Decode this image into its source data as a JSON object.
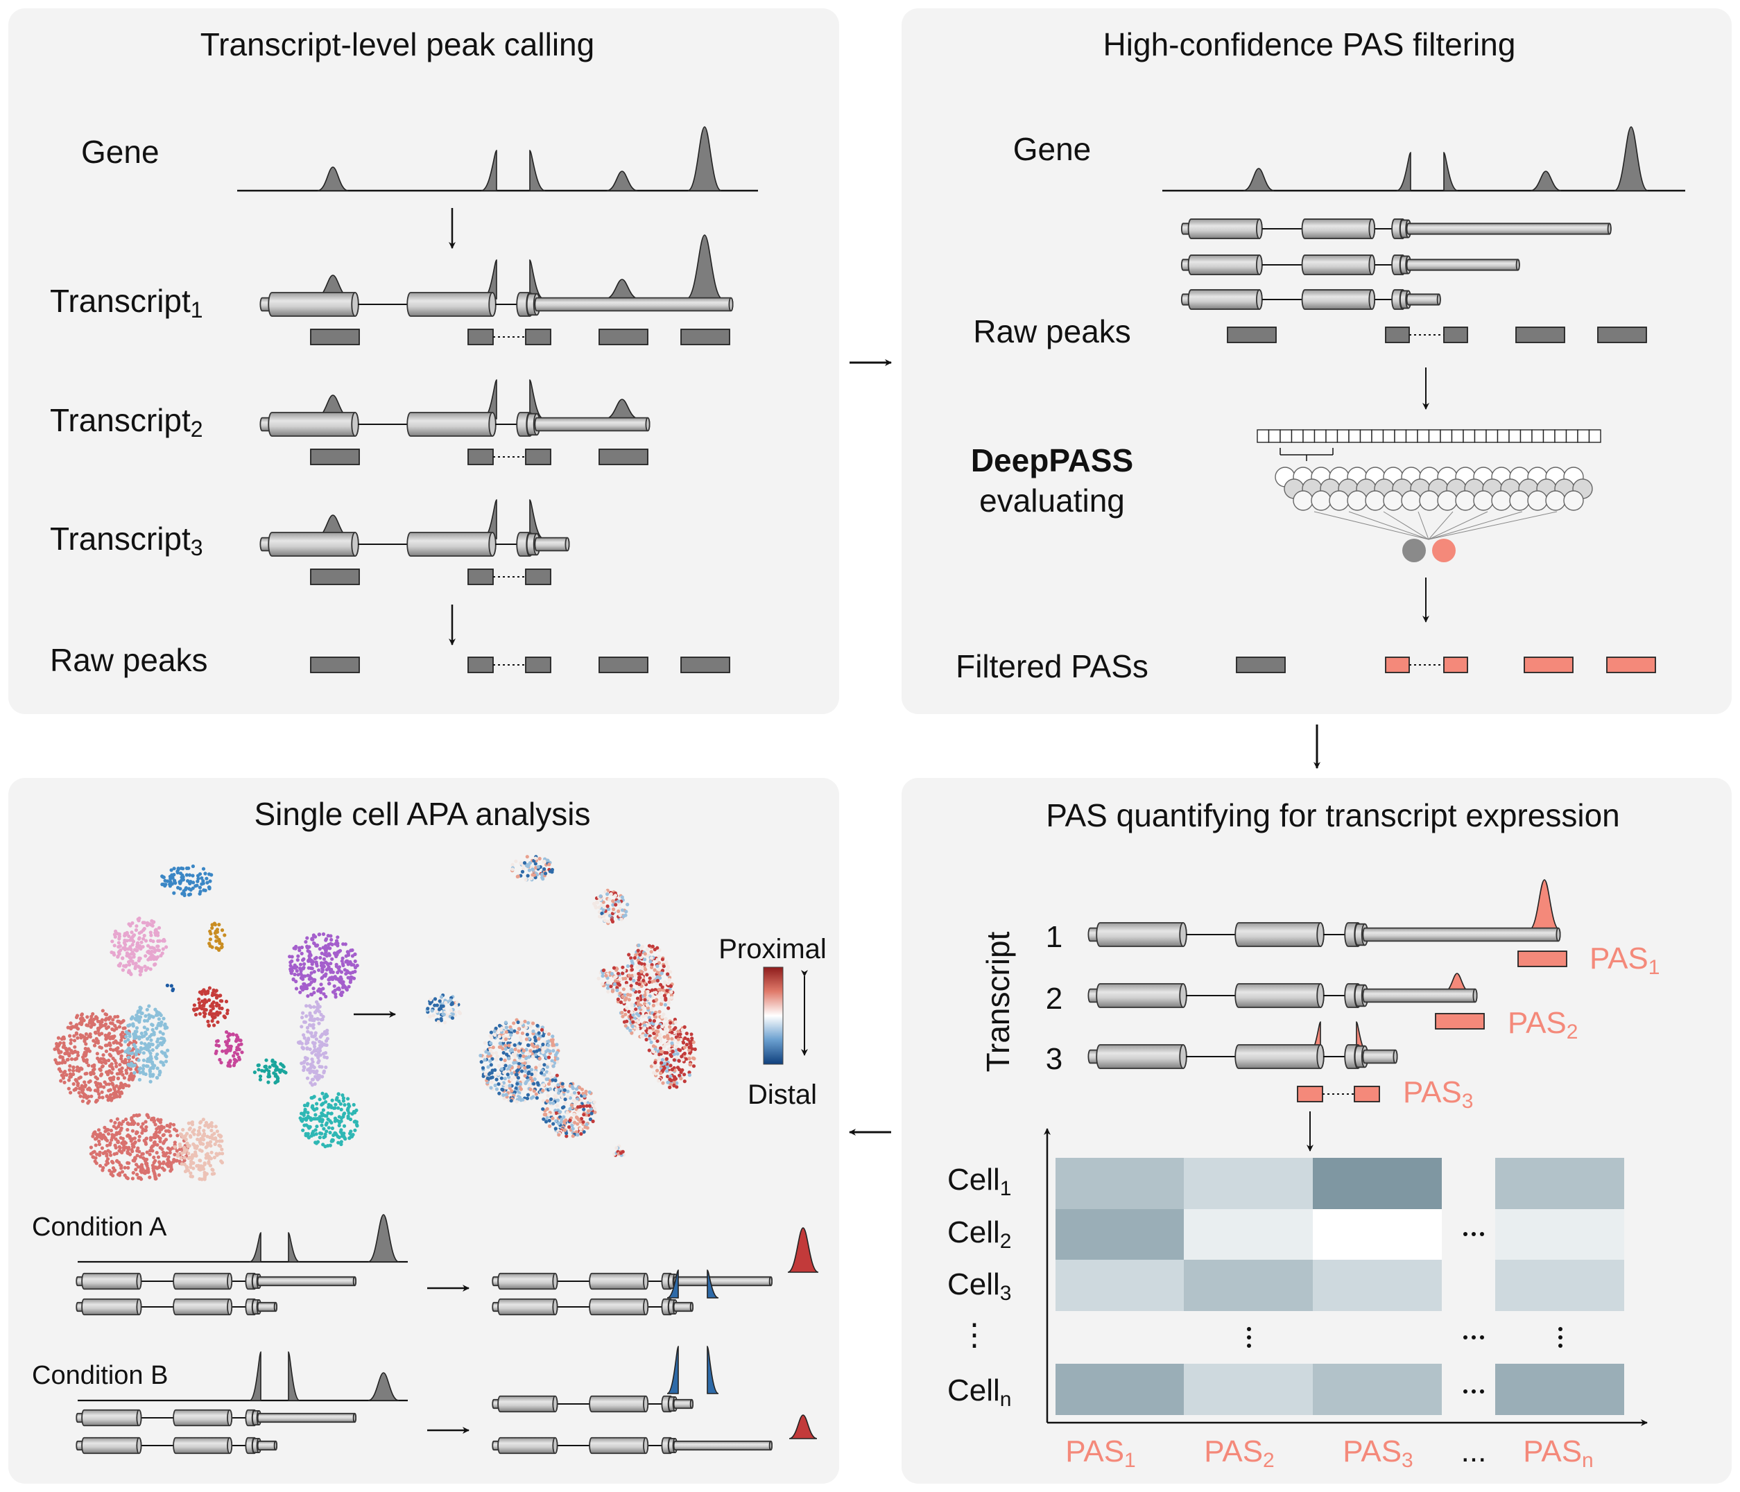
{
  "colors": {
    "panel_bg": "#f3f3f3",
    "peak": "#7d7d7d",
    "peak_box": "#7a7a7a",
    "salmon": "#f4897a",
    "salmon_text": "#f4897a",
    "proximal": "#c23a3a",
    "distal": "#2e6aa8",
    "heat_levels": [
      "#7f97a2",
      "#9aaeb7",
      "#b2c2c9",
      "#ced9de",
      "#e9eef0",
      "#ffffff"
    ]
  },
  "panel1": {
    "title": "Transcript-level peak calling",
    "gene": "Gene",
    "transcripts": [
      {
        "name": "Transcript",
        "sub": "1"
      },
      {
        "name": "Transcript",
        "sub": "2"
      },
      {
        "name": "Transcript",
        "sub": "3"
      }
    ],
    "raw_peaks": "Raw peaks"
  },
  "panel2": {
    "title": "High-confidence PAS filtering",
    "gene": "Gene",
    "raw_peaks": "Raw peaks",
    "model_name": "DeepPASS",
    "model_action": "evaluating",
    "filtered": "Filtered PASs"
  },
  "panel3": {
    "title": "PAS quantifying for transcript expression",
    "axis_label": "Transcript",
    "rows": [
      "1",
      "2",
      "3"
    ],
    "pas_labels": [
      {
        "name": "PAS",
        "sub": "1"
      },
      {
        "name": "PAS",
        "sub": "2"
      },
      {
        "name": "PAS",
        "sub": "3"
      }
    ],
    "cells": [
      {
        "name": "Cell",
        "sub": "1"
      },
      {
        "name": "Cell",
        "sub": "2"
      },
      {
        "name": "Cell",
        "sub": "3"
      },
      {
        "name": "⋮",
        "sub": ""
      },
      {
        "name": "Cell",
        "sub": "n"
      }
    ],
    "columns": [
      {
        "name": "PAS",
        "sub": "1"
      },
      {
        "name": "PAS",
        "sub": "2"
      },
      {
        "name": "PAS",
        "sub": "3"
      },
      {
        "name": "...",
        "sub": ""
      },
      {
        "name": "PAS",
        "sub": "n"
      }
    ],
    "heatmap_levels": [
      [
        2,
        3,
        0,
        2
      ],
      [
        1,
        4,
        5,
        4
      ],
      [
        3,
        2,
        3,
        3
      ],
      [
        1,
        3,
        2,
        1
      ]
    ]
  },
  "panel4": {
    "title": "Single cell APA analysis",
    "legend_top": "Proximal",
    "legend_bottom": "Distal",
    "condition_a": "Condition A",
    "condition_b": "Condition B"
  }
}
